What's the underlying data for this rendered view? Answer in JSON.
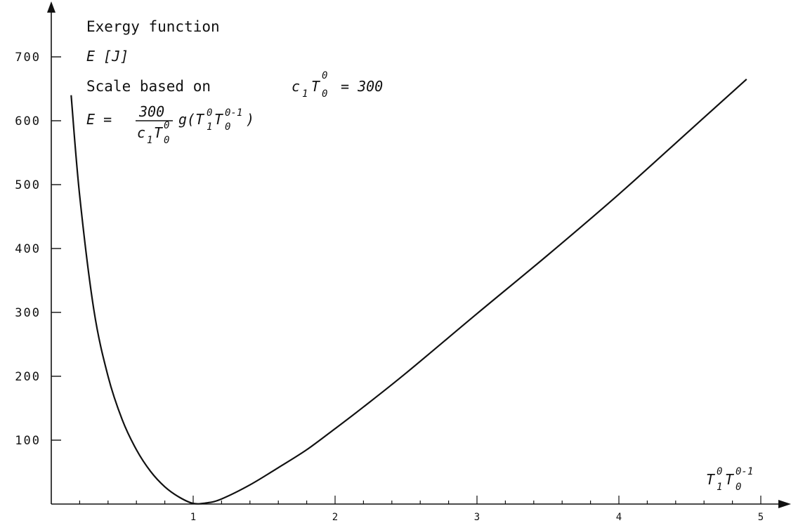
{
  "chart_data": {
    "type": "line",
    "title": "",
    "xlabel": "T_1^0 T_0^(0-1)",
    "ylabel": "E [J]",
    "xlim": [
      0,
      5.2
    ],
    "ylim": [
      0,
      700
    ],
    "x_ticks": [
      "1",
      "2",
      "3",
      "4",
      "5"
    ],
    "y_ticks": [
      "100",
      "200",
      "300",
      "400",
      "500",
      "600",
      "700"
    ],
    "grid": false,
    "legend": "none",
    "series": [
      {
        "x": [
          0.14,
          0.2,
          0.3,
          0.4,
          0.5,
          0.6,
          0.7,
          0.8,
          0.9,
          1.0,
          1.1,
          1.2,
          1.4,
          1.6,
          1.8,
          2.0,
          2.2,
          2.5,
          3.0,
          3.5,
          4.0,
          4.5,
          4.9
        ],
        "y": [
          640,
          483,
          304,
          200,
          132,
          85,
          51,
          27,
          11,
          1,
          2,
          8,
          30,
          57,
          85,
          118,
          152,
          205,
          298,
          390,
          485,
          585,
          665
        ]
      }
    ],
    "annotations": {
      "title": "Exergy function",
      "unit": "E [J]",
      "scale_prefix": "Scale based on",
      "scale_c": "c",
      "scale_1": "1",
      "scale_T": "T",
      "scale_sup": "0",
      "scale_sub": "0",
      "scale_eq": "= 300",
      "formula_E": "E =",
      "formula_num": "300",
      "formula_den_c": "c",
      "formula_den_1": "1",
      "formula_den_T": "T",
      "formula_den_sup": "0",
      "formula_den_sub": "0",
      "formula_g": "g(T",
      "formula_g_sup1": "0",
      "formula_g_sub1": "1",
      "formula_g_T": "T",
      "formula_g_sup2": "0-1",
      "formula_g_sub2": "0",
      "formula_g_close": ")",
      "axis_T1": "T",
      "axis_sup1": "0",
      "axis_sub1": "1",
      "axis_T2": "T",
      "axis_sup2": "0-1",
      "axis_sub2": "0"
    }
  }
}
